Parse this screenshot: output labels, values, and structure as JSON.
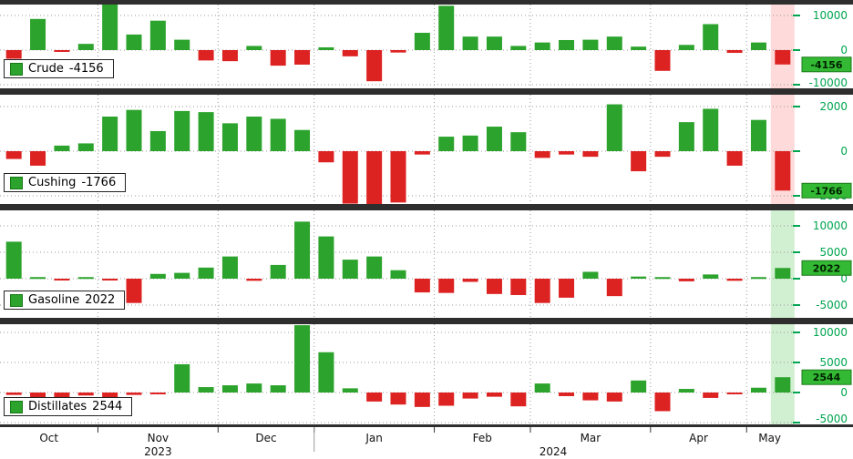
{
  "chart_data": {
    "type": "bar",
    "title": "",
    "x_months": [
      "Oct",
      "Nov",
      "Dec",
      "Jan",
      "Feb",
      "Mar",
      "Apr",
      "May"
    ],
    "years": [
      "2023",
      "2024"
    ],
    "month_week_counts": [
      4,
      5,
      4,
      5,
      4,
      5,
      4,
      2
    ],
    "colors": {
      "bar_green": "#2CA32C",
      "bar_red": "#DD2222",
      "axis_green": "#00A54F",
      "badge_bg": "#33B933",
      "badge_text": "#002200",
      "grid": "#9a9a9a",
      "separator": "#2e2e2e",
      "text": "#111111",
      "highlight_red": "rgba(255,70,70,0.20)",
      "highlight_green": "rgba(70,190,70,0.25)"
    },
    "panels": [
      {
        "name": "Crude",
        "last_value_label": "-4156",
        "last_value": -4156,
        "highlight": "red",
        "ylim": [
          -12000,
          12000
        ],
        "yticks": [
          10000,
          0,
          -10000
        ],
        "ytick_labels": [
          "10000",
          "0",
          "-10000"
        ],
        "values": [
          -2500,
          9000,
          -500,
          1800,
          13500,
          4500,
          8500,
          3000,
          -3000,
          -3200,
          1200,
          -4500,
          -4200,
          800,
          -1800,
          -9000,
          -700,
          5000,
          12800,
          3900,
          3900,
          1200,
          2200,
          2900,
          3000,
          3900,
          1000,
          -6000,
          1500,
          7500,
          -800,
          2200,
          -4156
        ]
      },
      {
        "name": "Cushing",
        "last_value_label": "-1766",
        "last_value": -1766,
        "highlight": "red",
        "ylim": [
          -2500,
          2400
        ],
        "yticks": [
          2000,
          0,
          -2000
        ],
        "ytick_labels": [
          "2000",
          "0",
          "-2000"
        ],
        "values": [
          -350,
          -650,
          250,
          350,
          1550,
          1850,
          900,
          1800,
          1750,
          1250,
          1550,
          1450,
          950,
          -500,
          -2350,
          -2400,
          -2300,
          -150,
          650,
          700,
          1100,
          850,
          -300,
          -150,
          -250,
          2100,
          -900,
          -250,
          1300,
          1900,
          -650,
          1400,
          -1766
        ]
      },
      {
        "name": "Gasoline",
        "last_value_label": "2022",
        "last_value": 2022,
        "highlight": "green",
        "ylim": [
          -7500,
          11000
        ],
        "yticks": [
          10000,
          5000,
          0,
          -5000
        ],
        "ytick_labels": [
          "10000",
          "5000",
          "0",
          "-5000"
        ],
        "values": [
          7000,
          300,
          -300,
          300,
          -300,
          -4600,
          900,
          1100,
          2100,
          4200,
          -400,
          2600,
          10800,
          8000,
          3600,
          4200,
          1600,
          -2600,
          -2700,
          -600,
          -2900,
          -3100,
          -4600,
          -3600,
          1300,
          -3300,
          400,
          300,
          -500,
          800,
          -400,
          300,
          2022
        ]
      },
      {
        "name": "Distillates",
        "last_value_label": "2544",
        "last_value": 2544,
        "highlight": "green",
        "ylim": [
          -6000,
          11500
        ],
        "yticks": [
          10000,
          5000,
          0,
          -5000
        ],
        "ytick_labels": [
          "10000",
          "5000",
          "0",
          "-5000"
        ],
        "values": [
          -400,
          -1300,
          -1500,
          -500,
          -900,
          -400,
          -300,
          4700,
          900,
          1200,
          1500,
          1200,
          11200,
          6700,
          700,
          -1500,
          -2000,
          -2400,
          -2200,
          -1000,
          -700,
          -2300,
          1500,
          -600,
          -1300,
          -1500,
          2000,
          -3100,
          600,
          -900,
          -300,
          800,
          2544
        ]
      }
    ]
  }
}
